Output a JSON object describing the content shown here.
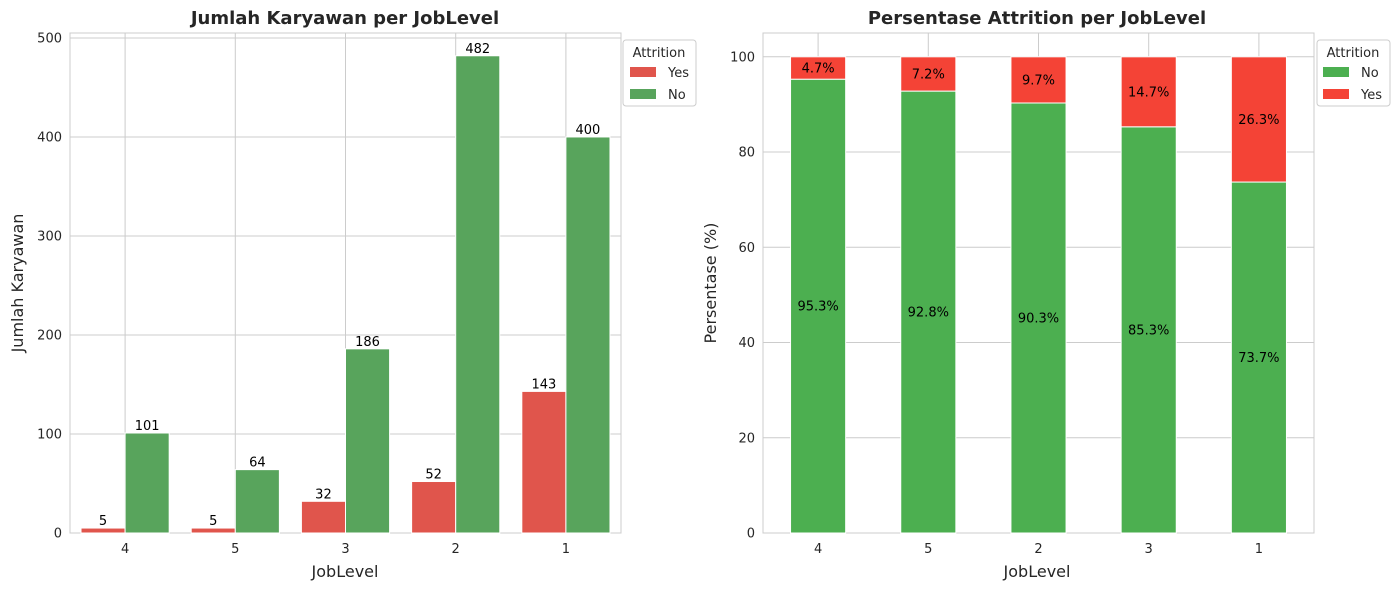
{
  "chart_data": [
    {
      "type": "bar",
      "title": "Jumlah Karyawan per JobLevel",
      "xlabel": "JobLevel",
      "ylabel": "Jumlah Karyawan",
      "categories": [
        "4",
        "5",
        "3",
        "2",
        "1"
      ],
      "ylim": [
        0,
        505
      ],
      "yticks": [
        0,
        100,
        200,
        300,
        400,
        500
      ],
      "grid": true,
      "legend": {
        "title": "Attrition",
        "placement": "top-right outside",
        "entries": [
          "Yes",
          "No"
        ]
      },
      "series": [
        {
          "name": "Yes",
          "color": "#e0554c",
          "values": [
            5,
            5,
            32,
            52,
            143
          ]
        },
        {
          "name": "No",
          "color": "#58a45c",
          "values": [
            101,
            64,
            186,
            482,
            400
          ]
        }
      ]
    },
    {
      "type": "bar",
      "stacked": true,
      "title": "Persentase Attrition per JobLevel",
      "xlabel": "JobLevel",
      "ylabel": "Persentase (%)",
      "categories": [
        "4",
        "5",
        "2",
        "3",
        "1"
      ],
      "ylim": [
        0,
        105
      ],
      "yticks": [
        0,
        20,
        40,
        60,
        80,
        100
      ],
      "grid": true,
      "legend": {
        "title": "Attrition",
        "placement": "top-right outside",
        "entries": [
          "No",
          "Yes"
        ]
      },
      "series": [
        {
          "name": "No",
          "color": "#4caf50",
          "values": [
            95.3,
            92.8,
            90.3,
            85.3,
            73.7
          ],
          "labels": [
            "95.3%",
            "92.8%",
            "90.3%",
            "85.3%",
            "73.7%"
          ]
        },
        {
          "name": "Yes",
          "color": "#f44336",
          "values": [
            4.7,
            7.2,
            9.7,
            14.7,
            26.3
          ],
          "labels": [
            "4.7%",
            "7.2%",
            "9.7%",
            "14.7%",
            "26.3%"
          ]
        }
      ]
    }
  ]
}
